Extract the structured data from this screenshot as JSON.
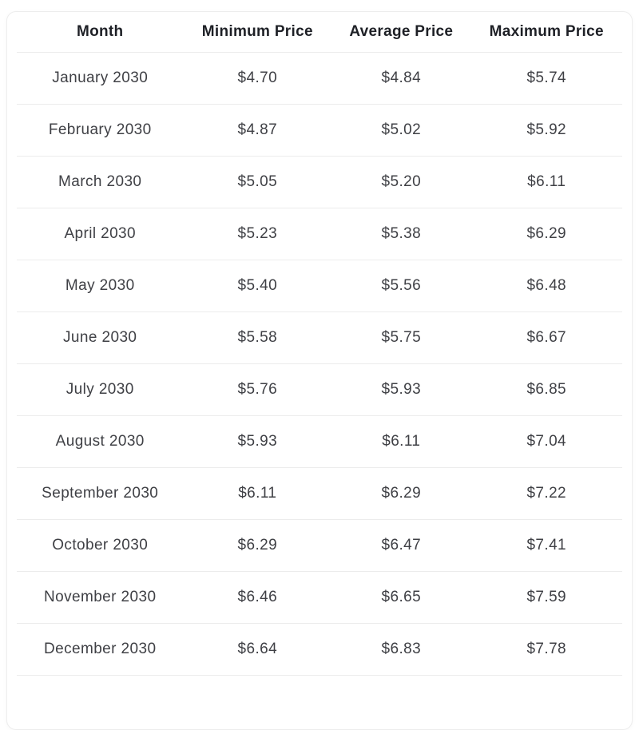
{
  "chart_data": {
    "type": "table",
    "columns": [
      "Month",
      "Minimum Price",
      "Average Price",
      "Maximum Price"
    ],
    "rows": [
      [
        "January 2030",
        "$4.70",
        "$4.84",
        "$5.74"
      ],
      [
        "February 2030",
        "$4.87",
        "$5.02",
        "$5.92"
      ],
      [
        "March 2030",
        "$5.05",
        "$5.20",
        "$6.11"
      ],
      [
        "April 2030",
        "$5.23",
        "$5.38",
        "$6.29"
      ],
      [
        "May 2030",
        "$5.40",
        "$5.56",
        "$6.48"
      ],
      [
        "June 2030",
        "$5.58",
        "$5.75",
        "$6.67"
      ],
      [
        "July 2030",
        "$5.76",
        "$5.93",
        "$6.85"
      ],
      [
        "August 2030",
        "$5.93",
        "$6.11",
        "$7.04"
      ],
      [
        "September 2030",
        "$6.11",
        "$6.29",
        "$7.22"
      ],
      [
        "October 2030",
        "$6.29",
        "$6.47",
        "$7.41"
      ],
      [
        "November 2030",
        "$6.46",
        "$6.65",
        "$7.59"
      ],
      [
        "December 2030",
        "$6.64",
        "$6.83",
        "$7.78"
      ]
    ]
  },
  "colors": {
    "background": "#ffffff",
    "card_border": "#ededed",
    "divider": "#ececec",
    "header_text": "#1e2026",
    "body_text": "#3f4045"
  }
}
